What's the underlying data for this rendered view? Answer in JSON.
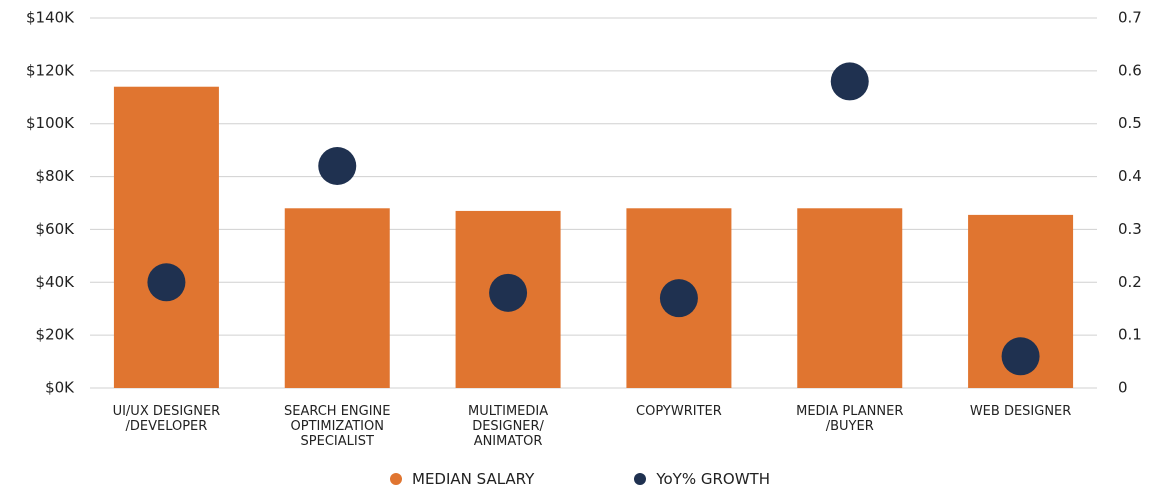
{
  "chart_data": {
    "type": "bar",
    "categories": [
      "UI/UX DESIGNER\n/DEVELOPER",
      "SEARCH ENGINE\nOPTIMIZATION\nSPECIALIST",
      "MULTIMEDIA\nDESIGNER/\nANIMATOR",
      "COPYWRITER",
      "MEDIA PLANNER\n/BUYER",
      "WEB DESIGNER"
    ],
    "series": [
      {
        "name": "MEDIAN SALARY",
        "color": "#e07530",
        "type": "bar",
        "values": [
          114000,
          68000,
          67000,
          68000,
          68000,
          65500
        ]
      },
      {
        "name": "YoY% GROWTH",
        "color": "#1f3150",
        "type": "scatter",
        "axis": "y2",
        "values": [
          0.2,
          0.42,
          0.18,
          0.17,
          0.58,
          0.06
        ]
      }
    ],
    "ylim": [
      0,
      140000
    ],
    "yticks": [
      {
        "value": 0,
        "label": "$0K"
      },
      {
        "value": 20000,
        "label": "$20K"
      },
      {
        "value": 40000,
        "label": "$40K"
      },
      {
        "value": 60000,
        "label": "$60K"
      },
      {
        "value": 80000,
        "label": "$80K"
      },
      {
        "value": 100000,
        "label": "$100K"
      },
      {
        "value": 120000,
        "label": "$120K"
      },
      {
        "value": 140000,
        "label": "$140K"
      }
    ],
    "y2lim": [
      0,
      0.7
    ],
    "y2ticks": [
      0,
      0.1,
      0.2,
      0.3,
      0.4,
      0.5,
      0.6,
      0.7
    ],
    "grid": true,
    "legend": "bottom"
  }
}
